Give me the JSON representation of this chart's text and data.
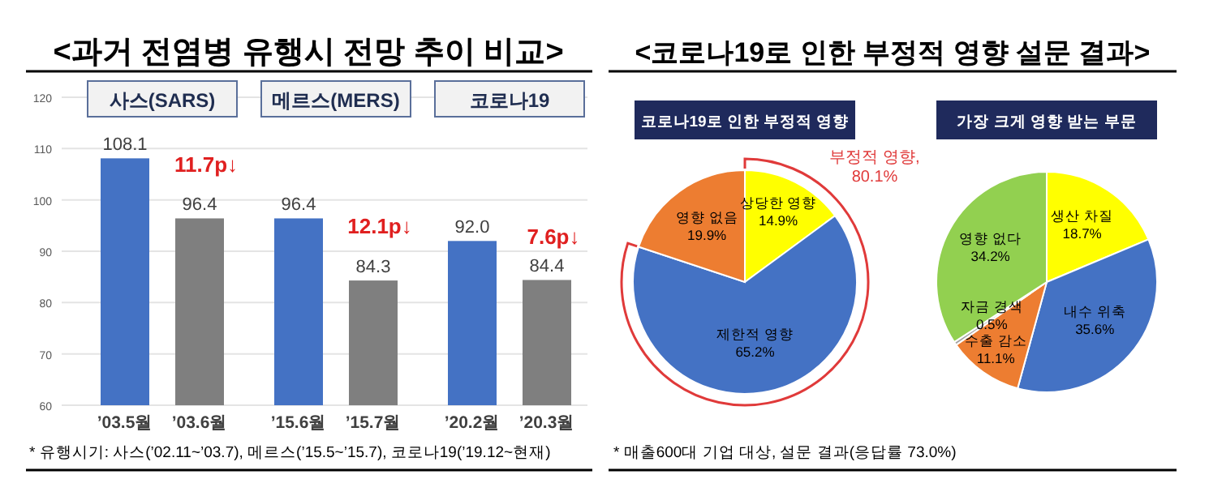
{
  "chart_data": [
    {
      "type": "bar",
      "title": "<과거 전염병 유행시 전망 추이 비교>",
      "categories": [
        "’03.5월",
        "’03.6월",
        "’15.6월",
        "’15.7월",
        "’20.2월",
        "’20.3월"
      ],
      "values": [
        108.1,
        96.4,
        96.4,
        84.3,
        92.0,
        84.4
      ],
      "colors": [
        "#4472c4",
        "#7f7f7f",
        "#4472c4",
        "#7f7f7f",
        "#4472c4",
        "#7f7f7f"
      ],
      "value_labels": [
        "108.1",
        "96.4",
        "96.4",
        "84.3",
        "92.0",
        "84.4"
      ],
      "ylim": [
        60,
        120
      ],
      "yticks": [
        60,
        70,
        80,
        90,
        100,
        110,
        120
      ],
      "grid": "y",
      "annotations": [
        "사스(SARS)",
        "메르스(MERS)",
        "코로나19",
        "11.7p↓",
        "12.1p↓",
        "7.6p↓",
        "* 유행시기: 사스(’02.11~’03.7), 메르스(’15.5~’15.7), 코로나19(’19.12~현재)"
      ]
    },
    {
      "type": "pie",
      "title": "<코로나19로 인한 부정적 영향 설문 결과>",
      "subtitle": "코로나19로 인한 부정적 영향",
      "categories": [
        "상당한 영향",
        "제한적 영향",
        "영향 없음"
      ],
      "values": [
        14.9,
        65.2,
        19.9
      ],
      "colors": [
        "#ffff00",
        "#4472c4",
        "#ed7d31"
      ],
      "value_labels": [
        "14.9%",
        "65.2%",
        "19.9%"
      ],
      "annotations": [
        "부정적 영향, 80.1%"
      ]
    },
    {
      "type": "pie",
      "title": "가장 크게 영향 받는 부문",
      "categories": [
        "생산 차질",
        "내수 위축",
        "수출 감소",
        "자금 경색",
        "영향 없다"
      ],
      "values": [
        18.7,
        35.6,
        11.1,
        0.5,
        34.2
      ],
      "colors": [
        "#ffff00",
        "#4472c4",
        "#ed7d31",
        "#a5a5a5",
        "#92d050"
      ],
      "value_labels": [
        "18.7%",
        "35.6%",
        "11.1%",
        "0.5%",
        "34.2%"
      ],
      "annotations": [
        "* 매출600대 기업 대상, 설문 결과(응답률 73.0%)"
      ]
    }
  ]
}
